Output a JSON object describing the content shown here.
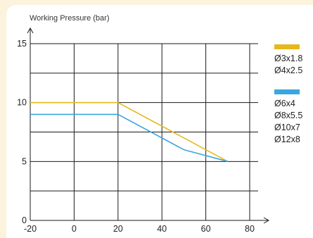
{
  "chart_data": {
    "type": "line",
    "title": "",
    "ylabel": "Working Pressure (bar)",
    "xlabel": "",
    "xlim": [
      -20,
      80
    ],
    "ylim": [
      0,
      15
    ],
    "x_ticks": [
      -20,
      0,
      20,
      40,
      60,
      80
    ],
    "y_ticks": [
      0,
      5,
      10,
      15
    ],
    "x_tick_labels": [
      "-20",
      "0",
      "20",
      "40",
      "60",
      "80"
    ],
    "y_tick_labels": [
      "0",
      "5",
      "10",
      "15"
    ],
    "grid": true,
    "series": [
      {
        "color": "#e6b81e",
        "x": [
          -20,
          20,
          70
        ],
        "y": [
          10,
          10,
          5
        ]
      },
      {
        "color": "#3aa6de",
        "x": [
          -20,
          20,
          50,
          70
        ],
        "y": [
          9,
          9,
          6,
          5
        ]
      }
    ],
    "legend": {
      "position": "right",
      "groups": [
        {
          "color": "#e6b81e",
          "items": [
            "Ø3x1.8",
            "Ø4x2.5"
          ]
        },
        {
          "color": "#3aa6de",
          "items": [
            "Ø6x4",
            "Ø8x5.5",
            "Ø10x7",
            "Ø12x8"
          ]
        }
      ]
    }
  }
}
